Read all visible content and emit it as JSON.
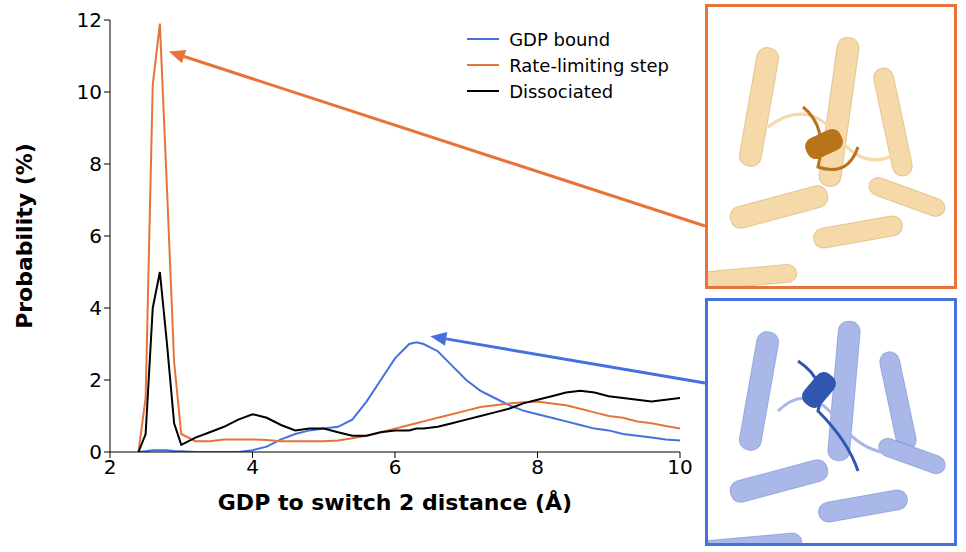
{
  "chart_data": {
    "type": "line",
    "xlabel": "GDP to switch 2 distance (Å)",
    "ylabel": "Probability (%)",
    "xlim": [
      2,
      10
    ],
    "xticks": [
      2,
      4,
      6,
      8,
      10
    ],
    "ylim": [
      0,
      12
    ],
    "yticks": [
      0,
      2,
      4,
      6,
      8,
      10,
      12
    ],
    "legend": "upper right",
    "x": [
      2.0,
      2.2,
      2.4,
      2.5,
      2.6,
      2.7,
      2.8,
      2.9,
      3.0,
      3.2,
      3.4,
      3.6,
      3.8,
      4.0,
      4.2,
      4.4,
      4.6,
      4.8,
      5.0,
      5.2,
      5.4,
      5.6,
      5.8,
      6.0,
      6.2,
      6.3,
      6.4,
      6.6,
      6.8,
      7.0,
      7.2,
      7.4,
      7.6,
      7.8,
      8.0,
      8.2,
      8.4,
      8.6,
      8.8,
      9.0,
      9.2,
      9.4,
      9.6,
      9.8,
      10.0
    ],
    "series": [
      {
        "name": "GDP bound",
        "color": "#4470e0",
        "values": [
          null,
          null,
          0,
          0.02,
          0.05,
          0.05,
          0.05,
          0.03,
          0.02,
          0,
          0,
          0,
          0,
          0.05,
          0.15,
          0.35,
          0.5,
          0.6,
          0.65,
          0.7,
          0.9,
          1.4,
          2.0,
          2.6,
          3.0,
          3.05,
          3.0,
          2.8,
          2.4,
          2.0,
          1.7,
          1.5,
          1.3,
          1.15,
          1.05,
          0.95,
          0.85,
          0.75,
          0.65,
          0.6,
          0.5,
          0.45,
          0.4,
          0.35,
          0.32
        ]
      },
      {
        "name": "Rate-limiting step",
        "color": "#e8733a",
        "values": [
          null,
          null,
          0,
          1.5,
          10.2,
          11.9,
          7.3,
          2.5,
          0.5,
          0.3,
          0.3,
          0.35,
          0.35,
          0.35,
          0.33,
          0.3,
          0.3,
          0.3,
          0.3,
          0.32,
          0.38,
          0.45,
          0.55,
          0.65,
          0.75,
          0.8,
          0.85,
          0.95,
          1.05,
          1.15,
          1.25,
          1.3,
          1.35,
          1.38,
          1.4,
          1.35,
          1.3,
          1.2,
          1.1,
          1.0,
          0.95,
          0.85,
          0.8,
          0.72,
          0.65
        ]
      },
      {
        "name": "Dissociated",
        "color": "#000000",
        "values": [
          null,
          null,
          0,
          0.5,
          4.0,
          5.0,
          3.0,
          0.8,
          0.2,
          0.4,
          0.55,
          0.7,
          0.9,
          1.05,
          0.95,
          0.75,
          0.6,
          0.65,
          0.65,
          0.55,
          0.45,
          0.45,
          0.55,
          0.6,
          0.6,
          0.65,
          0.65,
          0.7,
          0.8,
          0.9,
          1.0,
          1.1,
          1.2,
          1.35,
          1.45,
          1.55,
          1.65,
          1.7,
          1.65,
          1.55,
          1.5,
          1.45,
          1.4,
          1.45,
          1.5
        ]
      }
    ]
  }
}
